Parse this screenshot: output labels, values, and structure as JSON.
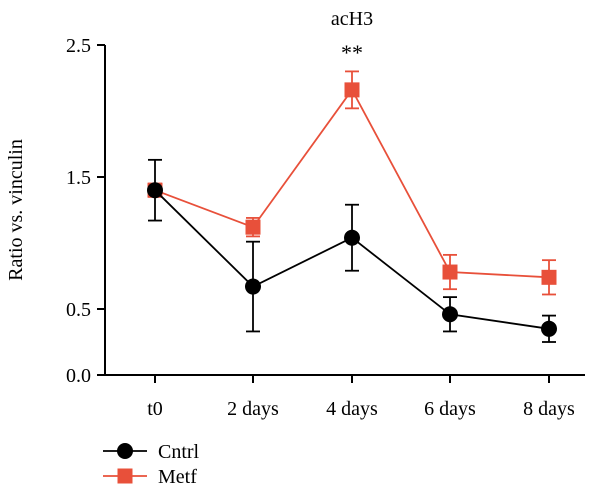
{
  "chart_data": {
    "type": "line",
    "title": "acH3",
    "xlabel": "",
    "ylabel": "Ratio vs. vinculin",
    "categories": [
      "t0",
      "2 days",
      "4 days",
      "6 days",
      "8 days"
    ],
    "yticks": [
      "0.0",
      "0.5",
      "1.5",
      "2.5"
    ],
    "ylim": [
      0,
      2.5
    ],
    "grid": false,
    "legend_position": "bottom-left",
    "annotations": [
      {
        "category": "4 days",
        "text": "**"
      }
    ],
    "series": [
      {
        "name": "Cntrl",
        "color": "#000000",
        "marker": "circle",
        "values": [
          1.4,
          0.67,
          1.04,
          0.46,
          0.35
        ],
        "error": [
          0.23,
          0.34,
          0.25,
          0.13,
          0.1
        ]
      },
      {
        "name": "Metf",
        "color": "#e8503a",
        "marker": "square",
        "values": [
          1.4,
          1.12,
          2.16,
          0.78,
          0.74
        ],
        "error": [
          0.05,
          0.07,
          0.14,
          0.13,
          0.13
        ]
      }
    ]
  }
}
